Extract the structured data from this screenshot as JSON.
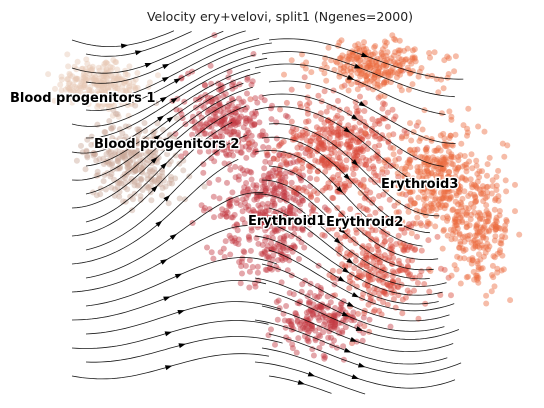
{
  "chart_data": {
    "type": "scatter",
    "title": "Velocity ery+velovi, split1 (Ngenes=2000)",
    "axes_visible": false,
    "grid": false,
    "overlay": "velocity streamlines",
    "clusters": [
      {
        "name": "Blood progenitors 1",
        "color": "#e7c8b4"
      },
      {
        "name": "Blood progenitors 2",
        "color": "#caa898"
      },
      {
        "name": "Erythroid1",
        "color": "#c43a42"
      },
      {
        "name": "Erythroid2",
        "color": "#d94a3a"
      },
      {
        "name": "Erythroid3",
        "color": "#ec6a3e"
      }
    ]
  }
}
